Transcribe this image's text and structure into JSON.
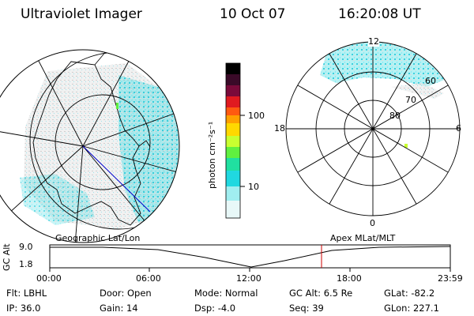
{
  "header": {
    "instrument": "Ultraviolet Imager",
    "date": "10 Oct 07",
    "time": "16:20:08 UT"
  },
  "colorbar": {
    "unit_label": "photon cm⁻²s⁻¹",
    "ticks": [
      "100",
      "10"
    ],
    "colors": [
      "#000000",
      "#3a0a28",
      "#7a0a3a",
      "#b0103a",
      "#e01a20",
      "#ff5a10",
      "#ffa000",
      "#ffd800",
      "#c8ff30",
      "#60f040",
      "#20e0a0",
      "#20d8e0",
      "#a0eef0",
      "#e8f8f8"
    ]
  },
  "left_map": {
    "label": "Geographic Lat/Lon",
    "accent_color": "#0000cc",
    "emission_color": "#2ad8e0"
  },
  "right_map": {
    "label": "Apex MLat/MLT",
    "mlat_labels": [
      "60",
      "70",
      "80"
    ],
    "mlt_labels": {
      "top": "12",
      "left": "18",
      "right": "6",
      "bottom": "0"
    },
    "emission_color": "#2ad8e0"
  },
  "timeline": {
    "y_axis_label": "GC Alt",
    "y_ticks": [
      "9.0",
      "1.8"
    ],
    "x_ticks": [
      "00:00",
      "06:00",
      "12:00",
      "18:00",
      "23:59"
    ],
    "current_marker_color": "#cc0000"
  },
  "info": {
    "row1": [
      {
        "label": "Flt:",
        "value": "LBHL"
      },
      {
        "label": "Door:",
        "value": "Open"
      },
      {
        "label": "Mode:",
        "value": "Normal"
      },
      {
        "label": "GC Alt:",
        "value": "6.5 Re"
      },
      {
        "label": "GLat:",
        "value": "-82.2"
      }
    ],
    "row2": [
      {
        "label": "IP:",
        "value": "36.0"
      },
      {
        "label": "Gain:",
        "value": "14"
      },
      {
        "label": "Dsp:",
        "value": "-4.0"
      },
      {
        "label": "Seq:",
        "value": "39"
      },
      {
        "label": "GLon:",
        "value": "227.1"
      }
    ]
  }
}
